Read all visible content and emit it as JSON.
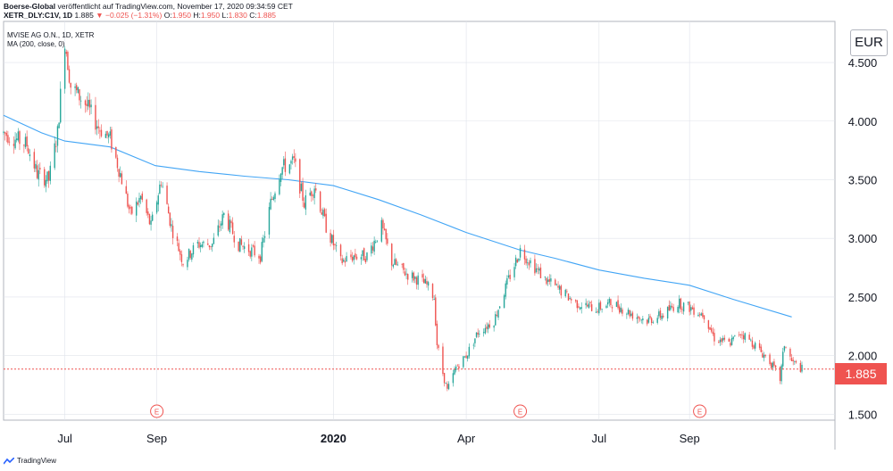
{
  "header": {
    "publisher": "Boerse-Global",
    "published_text": "veröffentlicht auf TradingView.com, November 17, 2020 09:34:59 CET",
    "symbol": "XETR_DLY:C1V, 1D",
    "last": "1.885",
    "change": "−0.025 (−1.31%)",
    "open_label": "O:",
    "open": "1.950",
    "high_label": "H:",
    "high": "1.950",
    "low_label": "L:",
    "low": "1.830",
    "close_label": "C:",
    "close": "1.885"
  },
  "legend": {
    "title": "MVISE AG O.N., 1D, XETR",
    "ma": "MA (200, close, 0)"
  },
  "currency": "EUR",
  "price_tag": "1.885",
  "footer": {
    "brand": "TradingView"
  },
  "colors": {
    "up": "#26a69a",
    "down": "#ef5350",
    "ma": "#42a5f5",
    "grid": "#e0e3eb",
    "price_line": "#ef5350"
  },
  "chart_data": {
    "type": "candlestick",
    "y_ticks": [
      "1.500",
      "2.000",
      "2.500",
      "3.000",
      "3.500",
      "4.000",
      "4.500"
    ],
    "y_range": [
      1.45,
      4.85
    ],
    "x_ticks": [
      "Jul",
      "Sep",
      "2020",
      "Apr",
      "Jul",
      "Sep"
    ],
    "x_range": [
      "2019-05-20",
      "2020-11-17"
    ],
    "x_tick_dates": [
      "2019-07-01",
      "2019-09-02",
      "2020-01-01",
      "2020-04-01",
      "2020-07-01",
      "2020-09-01"
    ],
    "events": [
      {
        "date": "2019-09-02",
        "label": "E"
      },
      {
        "date": "2020-05-08",
        "label": "E"
      },
      {
        "date": "2020-09-08",
        "label": "E"
      }
    ],
    "last_price": 1.885,
    "price_path": [
      [
        "2019-05-20",
        3.9
      ],
      [
        "2019-06-05",
        3.8
      ],
      [
        "2019-06-12",
        3.55
      ],
      [
        "2019-06-20",
        3.5
      ],
      [
        "2019-06-26",
        3.9
      ],
      [
        "2019-07-01",
        4.7
      ],
      [
        "2019-07-05",
        4.3
      ],
      [
        "2019-07-15",
        4.15
      ],
      [
        "2019-07-24",
        3.95
      ],
      [
        "2019-08-01",
        3.85
      ],
      [
        "2019-08-08",
        3.55
      ],
      [
        "2019-08-15",
        3.2
      ],
      [
        "2019-08-22",
        3.35
      ],
      [
        "2019-08-29",
        3.1
      ],
      [
        "2019-09-05",
        3.5
      ],
      [
        "2019-09-12",
        3.1
      ],
      [
        "2019-09-20",
        2.8
      ],
      [
        "2019-09-30",
        2.95
      ],
      [
        "2019-10-10",
        2.95
      ],
      [
        "2019-10-18",
        3.2
      ],
      [
        "2019-10-28",
        2.95
      ],
      [
        "2019-11-05",
        2.9
      ],
      [
        "2019-11-12",
        2.85
      ],
      [
        "2019-11-19",
        3.3
      ],
      [
        "2019-11-26",
        3.6
      ],
      [
        "2019-12-05",
        3.65
      ],
      [
        "2019-12-12",
        3.3
      ],
      [
        "2019-12-19",
        3.45
      ],
      [
        "2019-12-27",
        3.1
      ],
      [
        "2020-01-06",
        2.8
      ],
      [
        "2020-01-15",
        2.85
      ],
      [
        "2020-01-24",
        2.85
      ],
      [
        "2020-02-03",
        3.1
      ],
      [
        "2020-02-10",
        2.8
      ],
      [
        "2020-02-20",
        2.7
      ],
      [
        "2020-02-28",
        2.65
      ],
      [
        "2020-03-05",
        2.6
      ],
      [
        "2020-03-10",
        2.5
      ],
      [
        "2020-03-12",
        2.1
      ],
      [
        "2020-03-16",
        1.85
      ],
      [
        "2020-03-19",
        1.7
      ],
      [
        "2020-03-25",
        1.9
      ],
      [
        "2020-04-01",
        2.0
      ],
      [
        "2020-04-09",
        2.2
      ],
      [
        "2020-04-20",
        2.3
      ],
      [
        "2020-04-30",
        2.65
      ],
      [
        "2020-05-08",
        2.9
      ],
      [
        "2020-05-15",
        2.8
      ],
      [
        "2020-05-25",
        2.65
      ],
      [
        "2020-06-05",
        2.55
      ],
      [
        "2020-06-15",
        2.45
      ],
      [
        "2020-06-29",
        2.4
      ],
      [
        "2020-07-10",
        2.45
      ],
      [
        "2020-07-24",
        2.35
      ],
      [
        "2020-08-03",
        2.3
      ],
      [
        "2020-08-14",
        2.35
      ],
      [
        "2020-08-24",
        2.45
      ],
      [
        "2020-09-03",
        2.4
      ],
      [
        "2020-09-11",
        2.35
      ],
      [
        "2020-09-18",
        2.15
      ],
      [
        "2020-09-28",
        2.1
      ],
      [
        "2020-10-06",
        2.2
      ],
      [
        "2020-10-15",
        2.1
      ],
      [
        "2020-10-26",
        1.95
      ],
      [
        "2020-11-02",
        1.8
      ],
      [
        "2020-11-05",
        2.1
      ],
      [
        "2020-11-10",
        1.95
      ],
      [
        "2020-11-17",
        1.885
      ]
    ],
    "ma200": [
      [
        "2019-05-20",
        4.05
      ],
      [
        "2019-06-15",
        3.9
      ],
      [
        "2019-07-01",
        3.83
      ],
      [
        "2019-08-01",
        3.78
      ],
      [
        "2019-09-01",
        3.62
      ],
      [
        "2019-10-01",
        3.57
      ],
      [
        "2019-11-01",
        3.53
      ],
      [
        "2019-12-01",
        3.5
      ],
      [
        "2020-01-01",
        3.45
      ],
      [
        "2020-02-01",
        3.33
      ],
      [
        "2020-03-01",
        3.2
      ],
      [
        "2020-04-01",
        3.05
      ],
      [
        "2020-05-08",
        2.9
      ],
      [
        "2020-06-01",
        2.83
      ],
      [
        "2020-07-01",
        2.73
      ],
      [
        "2020-08-01",
        2.66
      ],
      [
        "2020-09-01",
        2.6
      ],
      [
        "2020-10-01",
        2.48
      ],
      [
        "2020-11-10",
        2.33
      ]
    ]
  }
}
